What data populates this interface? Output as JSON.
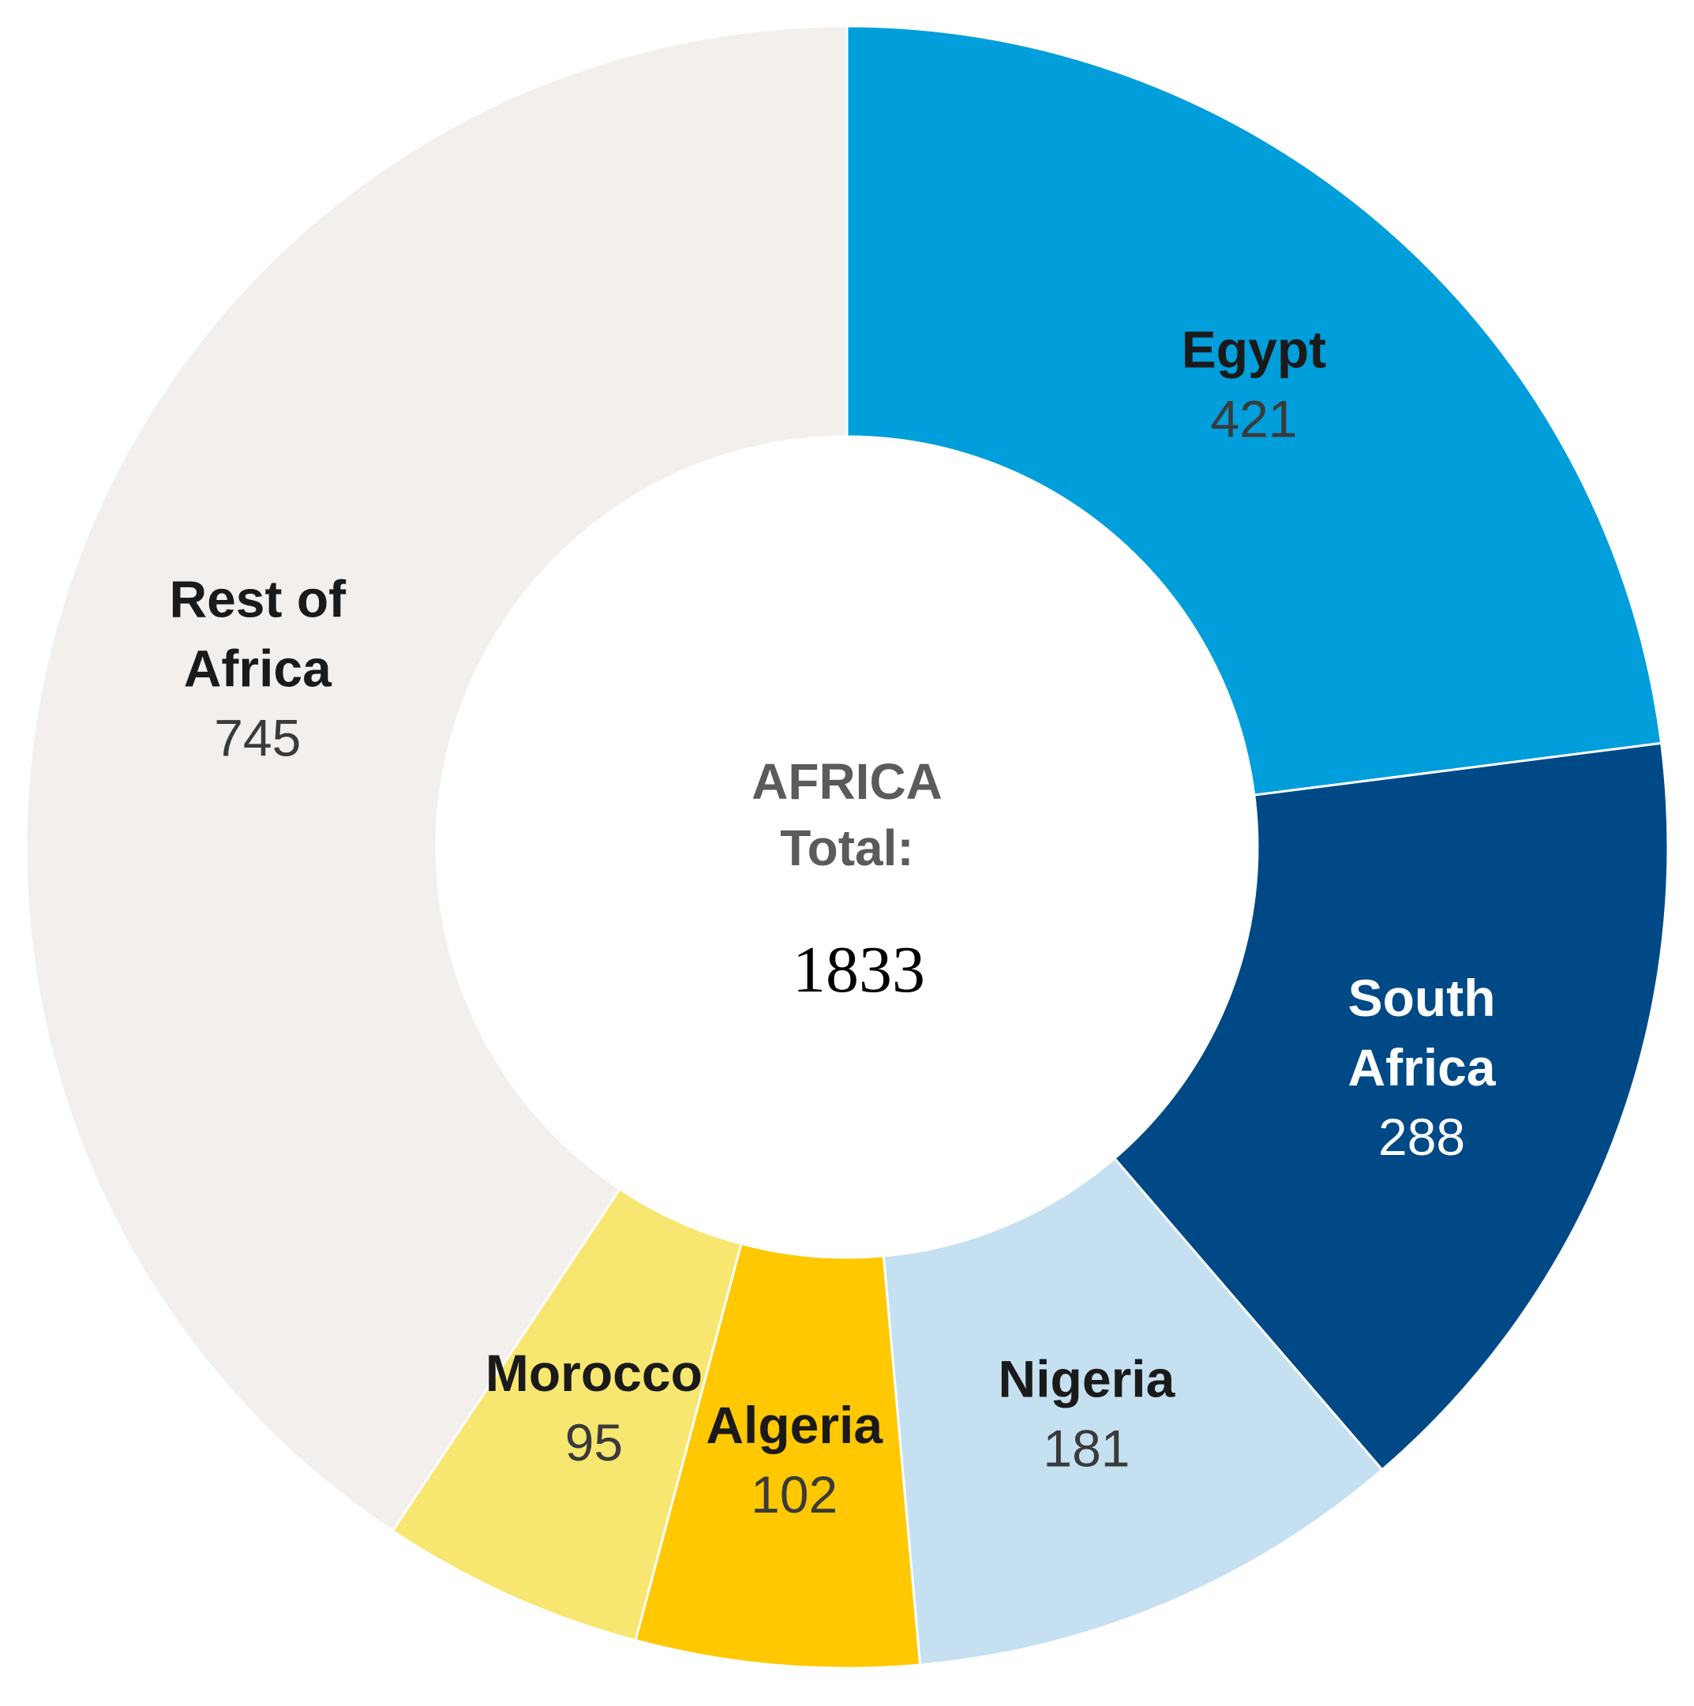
{
  "chart_data": {
    "type": "pie",
    "donut": true,
    "center": {
      "title_lines": [
        "AFRICA",
        "Total:"
      ],
      "total": "1833"
    },
    "slices": [
      {
        "name": "Egypt",
        "label_lines": [
          "Egypt"
        ],
        "value": 421,
        "color": "#009edb",
        "label_color": "#1a1a1a",
        "value_color": "#3a3a3a"
      },
      {
        "name": "South Africa",
        "label_lines": [
          "South",
          "Africa"
        ],
        "value": 288,
        "color": "#004987",
        "label_color": "#ffffff",
        "value_color": "#ffffff"
      },
      {
        "name": "Nigeria",
        "label_lines": [
          "Nigeria"
        ],
        "value": 181,
        "color": "#c5e0f0",
        "label_color": "#1a1a1a",
        "value_color": "#3a3a3a"
      },
      {
        "name": "Algeria",
        "label_lines": [
          "Algeria"
        ],
        "value": 102,
        "color": "#ffc800",
        "label_color": "#1a1a1a",
        "value_color": "#3a3a3a"
      },
      {
        "name": "Morocco",
        "label_lines": [
          "Morocco"
        ],
        "value": 95,
        "color": "#f7e670",
        "label_color": "#1a1a1a",
        "value_color": "#3a3a3a"
      },
      {
        "name": "Rest of Africa",
        "label_lines": [
          "Rest of",
          "Africa"
        ],
        "value": 745,
        "color": "#f2efed",
        "label_color": "#1a1a1a",
        "value_color": "#3a3a3a"
      }
    ]
  }
}
